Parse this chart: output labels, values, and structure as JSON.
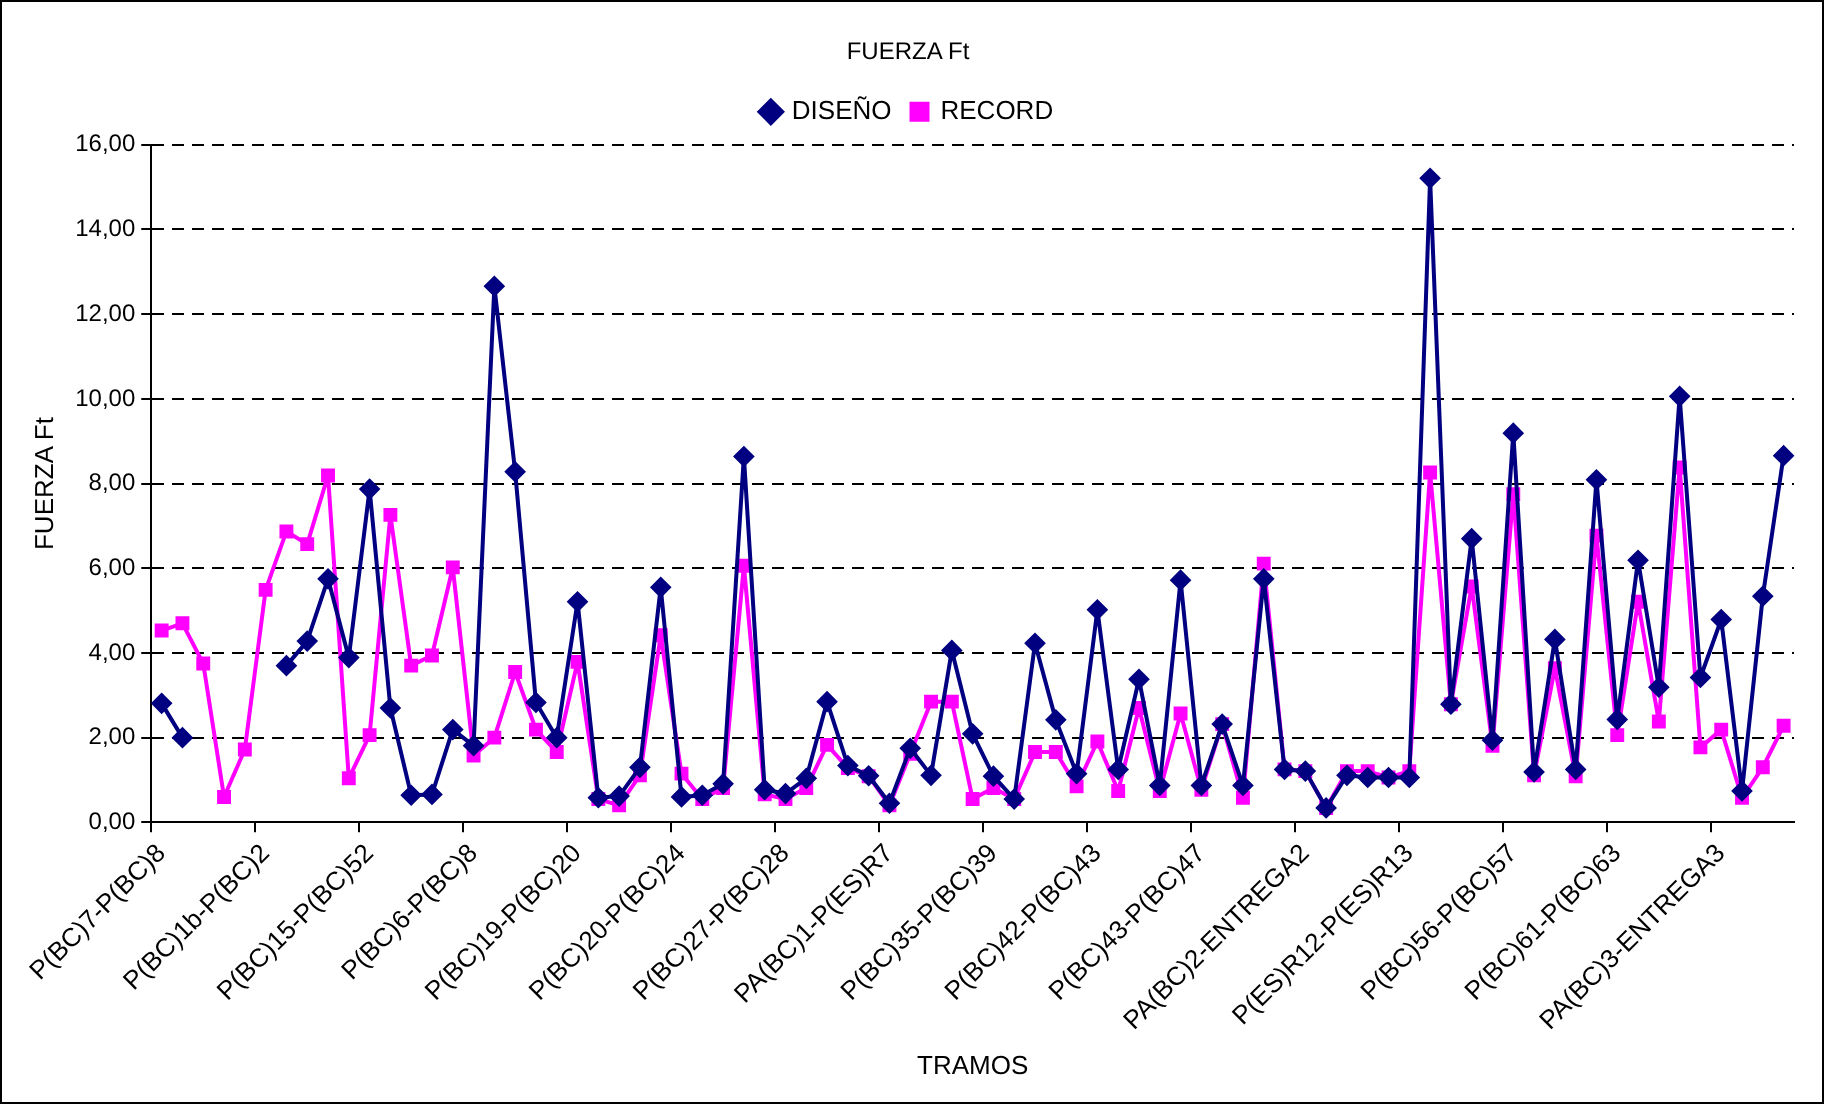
{
  "chart_data": {
    "type": "line",
    "title": "FUERZA Ft",
    "xlabel": "TRAMOS",
    "ylabel": "FUERZA Ft",
    "categories": [
      "P(BC)7-P(BC)8",
      null,
      null,
      null,
      null,
      "P(BC)1b-P(BC)2",
      null,
      null,
      null,
      null,
      "P(BC)15-P(BC)52",
      null,
      null,
      null,
      null,
      "P(BC)6-P(BC)8",
      null,
      null,
      null,
      null,
      "P(BC)19-P(BC)20",
      null,
      null,
      null,
      null,
      "P(BC)20-P(BC)24",
      null,
      null,
      null,
      null,
      "P(BC)27-P(BC)28",
      null,
      null,
      null,
      null,
      "PA(BC)1-P(ES)R7",
      null,
      null,
      null,
      null,
      "P(BC)35-P(BC)39",
      null,
      null,
      null,
      null,
      "P(BC)42-P(BC)43",
      null,
      null,
      null,
      null,
      "P(BC)43-P(BC)47",
      null,
      null,
      null,
      null,
      "PA(BC)2-ENTREGA2",
      null,
      null,
      null,
      null,
      "P(ES)R12-P(ES)R13",
      null,
      null,
      null,
      null,
      "P(BC)56-P(BC)57",
      null,
      null,
      null,
      null,
      "P(BC)61-P(BC)63",
      null,
      null,
      null,
      null,
      "PA(BC)3-ENTREGA3",
      null,
      null,
      null
    ],
    "series": [
      {
        "name": "DISEÑO",
        "color": "#000080",
        "marker": "diamond",
        "values": [
          2.81,
          2.0,
          null,
          null,
          null,
          null,
          3.7,
          4.28,
          5.75,
          3.89,
          7.87,
          2.7,
          0.64,
          0.66,
          2.19,
          1.81,
          12.66,
          8.28,
          2.83,
          2.0,
          5.21,
          0.58,
          0.62,
          1.3,
          5.55,
          0.6,
          0.64,
          0.91,
          8.64,
          0.77,
          0.68,
          1.04,
          2.85,
          1.34,
          1.1,
          0.45,
          1.75,
          1.11,
          4.06,
          2.09,
          1.09,
          0.55,
          4.23,
          2.42,
          1.15,
          5.02,
          1.25,
          3.38,
          0.87,
          5.72,
          0.87,
          2.32,
          0.87,
          5.75,
          1.25,
          1.21,
          0.34,
          1.11,
          1.06,
          1.06,
          1.06,
          15.21,
          2.79,
          6.7,
          1.94,
          9.19,
          1.19,
          4.32,
          1.25,
          8.09,
          2.43,
          6.19,
          3.19,
          10.06,
          3.42,
          4.79,
          0.74,
          5.34,
          8.66
        ]
      },
      {
        "name": "RECORD",
        "color": "#ff00ff",
        "marker": "square",
        "values": [
          4.53,
          4.7,
          3.75,
          0.6,
          1.72,
          5.49,
          6.87,
          6.57,
          8.19,
          1.04,
          2.06,
          7.26,
          3.7,
          3.94,
          6.02,
          1.58,
          2.0,
          3.55,
          2.19,
          1.66,
          3.79,
          0.55,
          0.4,
          1.11,
          4.42,
          1.15,
          0.55,
          0.81,
          6.06,
          0.66,
          0.55,
          0.81,
          1.83,
          1.28,
          1.09,
          0.4,
          1.62,
          2.85,
          2.85,
          0.55,
          0.81,
          0.55,
          1.66,
          1.66,
          0.85,
          1.91,
          0.74,
          2.7,
          0.74,
          2.57,
          0.77,
          2.32,
          0.58,
          6.11,
          1.25,
          1.21,
          0.34,
          1.21,
          1.21,
          1.06,
          1.21,
          8.26,
          2.79,
          5.57,
          1.81,
          7.75,
          1.11,
          3.64,
          1.09,
          6.77,
          2.06,
          5.21,
          2.38,
          8.38,
          1.77,
          2.19,
          0.58,
          1.3,
          2.28
        ]
      }
    ],
    "ylim": [
      0,
      16
    ],
    "yticks": [
      {
        "value": 0,
        "label": "0,00"
      },
      {
        "value": 2,
        "label": "2,00"
      },
      {
        "value": 4,
        "label": "4,00"
      },
      {
        "value": 6,
        "label": "6,00"
      },
      {
        "value": 8,
        "label": "8,00"
      },
      {
        "value": 10,
        "label": "10,00"
      },
      {
        "value": 12,
        "label": "12,00"
      },
      {
        "value": 14,
        "label": "14,00"
      },
      {
        "value": 16,
        "label": "16,00"
      }
    ],
    "grid": "y",
    "line_style": "solid",
    "legend": "top"
  }
}
